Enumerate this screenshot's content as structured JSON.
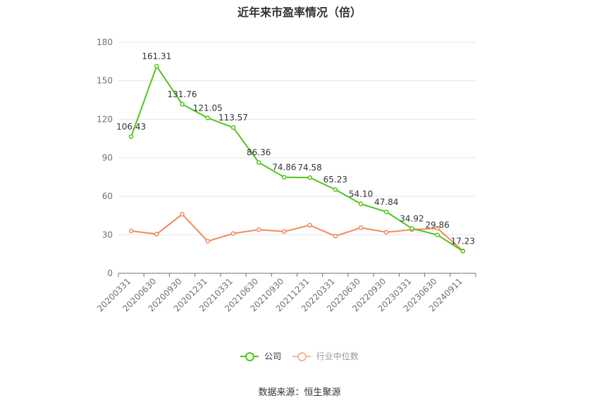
{
  "title": "近年来市盈率情况（倍）",
  "source": "数据来源：恒生聚源",
  "chart_data": {
    "type": "line",
    "categories": [
      "20200331",
      "20200630",
      "20200930",
      "20201231",
      "20210331",
      "20210630",
      "20210930",
      "20211231",
      "20220331",
      "20220630",
      "20220930",
      "20230331",
      "20230630",
      "20240911"
    ],
    "ylim": [
      0,
      180
    ],
    "yticks": [
      0,
      30,
      60,
      90,
      120,
      150,
      180
    ],
    "grid": true,
    "legend_position": "bottom",
    "series": [
      {
        "name": "公司",
        "color": "#52c41a",
        "values": [
          106.43,
          161.31,
          131.76,
          121.05,
          113.57,
          86.36,
          74.86,
          74.58,
          65.23,
          54.1,
          47.84,
          34.92,
          29.86,
          17.23
        ],
        "labels": [
          "106.43",
          "161.31",
          "131.76",
          "121.05",
          "113.57",
          "86.36",
          "74.86",
          "74.58",
          "65.23",
          "54.10",
          "47.84",
          "34.92",
          "29.86",
          "17.23"
        ]
      },
      {
        "name": "行业中位数",
        "color": "#f08a5d",
        "values": [
          33,
          30.5,
          46,
          25,
          31,
          34,
          32.5,
          37.5,
          29,
          35.5,
          32,
          34,
          35,
          17.5
        ]
      }
    ]
  }
}
